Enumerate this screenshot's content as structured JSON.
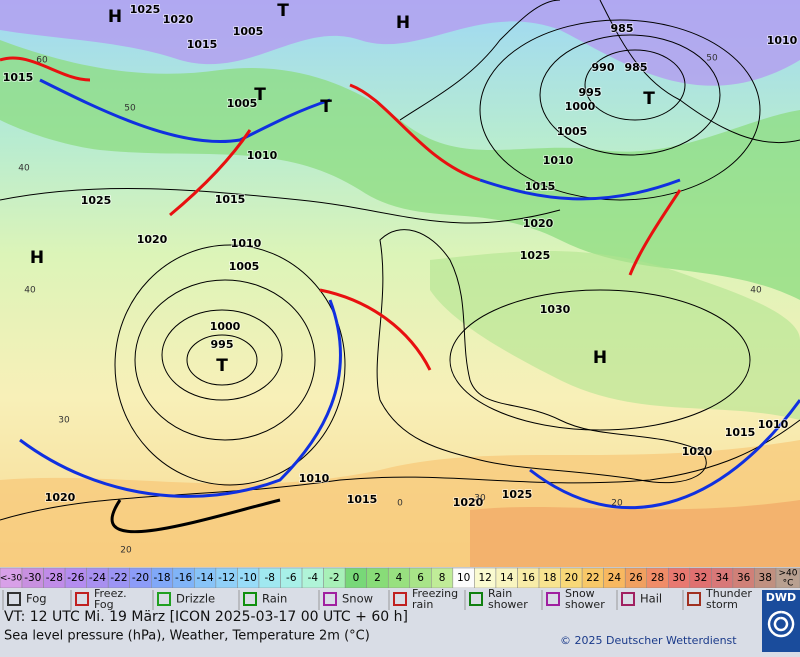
{
  "map": {
    "pressure_labels": [
      "1025",
      "1020",
      "1015",
      "1005",
      "1015",
      "1005",
      "1010",
      "1015",
      "1025",
      "1020",
      "1010",
      "1005",
      "1000",
      "995",
      "1030",
      "1025",
      "1020",
      "1015",
      "1010",
      "1005",
      "1000",
      "995",
      "990",
      "985",
      "985",
      "1010",
      "1015",
      "1010",
      "1020",
      "1025",
      "1020",
      "1015",
      "1010",
      "1020"
    ],
    "centers": [
      "H",
      "H",
      "H",
      "H",
      "T",
      "T",
      "T",
      "T",
      "T"
    ],
    "temperature_labels": [
      "60",
      "50",
      "40",
      "40",
      "30",
      "20",
      "50",
      "40",
      "0",
      "20",
      "30"
    ]
  },
  "scale": {
    "low_label": "<-30",
    "low_color": "#d8a0e8",
    "ticks": [
      -30,
      -28,
      -26,
      -24,
      -22,
      -20,
      -18,
      -16,
      -14,
      -12,
      -10,
      -8,
      -6,
      -4,
      -2,
      0,
      2,
      4,
      6,
      8,
      10,
      12,
      14,
      16,
      18,
      20,
      22,
      24,
      26,
      28,
      30,
      32,
      34,
      36,
      38
    ],
    "colors": [
      "#c890e0",
      "#c08ce8",
      "#b48cf0",
      "#a890f0",
      "#9c94f4",
      "#8c9cf8",
      "#80a8f8",
      "#80b4f8",
      "#88c4f8",
      "#90d0f8",
      "#98dcf8",
      "#a0e8f0",
      "#a8f0e8",
      "#b0f4d8",
      "#a8f0b8",
      "#78d878",
      "#88dc78",
      "#98e080",
      "#a8e488",
      "#c0ec98",
      "#fcfcfc",
      "#fafad0",
      "#f8f4c0",
      "#f8eca8",
      "#f8e490",
      "#f8d878",
      "#f8c868",
      "#f8b860",
      "#f0a060",
      "#f08c68",
      "#e87870",
      "#e07070",
      "#d87878",
      "#d08078",
      "#c09080"
    ],
    "high_label": ">40",
    "high_unit": "°C",
    "high_color": "#b8a090"
  },
  "weather_legend": [
    {
      "label": [
        "Fog"
      ]
    },
    {
      "label": [
        "Freez.",
        "Fog"
      ]
    },
    {
      "label": [
        "Drizzle"
      ]
    },
    {
      "label": [
        "Rain"
      ]
    },
    {
      "label": [
        "Snow"
      ]
    },
    {
      "label": [
        "Freezing",
        "rain"
      ]
    },
    {
      "label": [
        "Rain",
        "shower"
      ]
    },
    {
      "label": [
        "Snow",
        "shower"
      ]
    },
    {
      "label": [
        "Hail"
      ]
    },
    {
      "label": [
        "Thunder",
        "storm"
      ]
    }
  ],
  "footer": {
    "valid_time": "VT: 12 UTC Mi.   19 März [ICON 2025-03-17  00 UTC + 60 h]",
    "description": "Sea level pressure (hPa), Weather, Temperature 2m (°C)",
    "copyright": "© 2025 Deutscher Wetterdienst",
    "logo": "DWD"
  }
}
